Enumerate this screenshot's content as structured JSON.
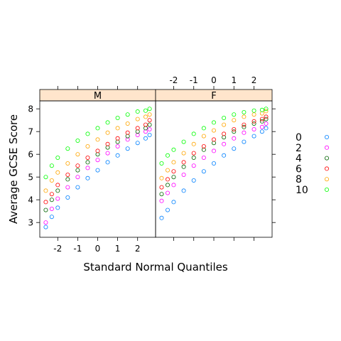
{
  "chart_data": {
    "type": "scatter",
    "title": "",
    "xlabel": "Standard Normal Quantiles",
    "ylabel": "Average GCSE Score",
    "xlim": [
      -2.9,
      2.9
    ],
    "ylim": [
      2.35,
      8.35
    ],
    "x_ticks": [
      -2,
      -1,
      0,
      1,
      2
    ],
    "x_tick_labels": [
      "-2",
      "-1",
      "0",
      "1",
      "2"
    ],
    "y_ticks": [
      3,
      4,
      5,
      6,
      7,
      8
    ],
    "y_tick_labels": [
      "3",
      "4",
      "5",
      "6",
      "7",
      "8"
    ],
    "grid": false,
    "legend_position": "right",
    "panels": [
      {
        "label": "M",
        "series": [
          {
            "name": "0",
            "color": "#0080ff",
            "points": [
              [
                -2.6,
                2.8
              ],
              [
                -2.3,
                3.25
              ],
              [
                -2.0,
                3.65
              ],
              [
                -1.5,
                4.1
              ],
              [
                -1.0,
                4.55
              ],
              [
                -0.5,
                4.95
              ],
              [
                0.0,
                5.3
              ],
              [
                0.5,
                5.65
              ],
              [
                1.0,
                5.95
              ],
              [
                1.5,
                6.25
              ],
              [
                2.0,
                6.5
              ],
              [
                2.4,
                6.7
              ],
              [
                2.6,
                6.85
              ]
            ]
          },
          {
            "name": "2",
            "color": "#ff00ff",
            "points": [
              [
                -2.6,
                3.0
              ],
              [
                -2.3,
                3.6
              ],
              [
                -2.0,
                4.05
              ],
              [
                -1.5,
                4.55
              ],
              [
                -1.0,
                5.0
              ],
              [
                -0.5,
                5.4
              ],
              [
                0.0,
                5.75
              ],
              [
                0.5,
                6.05
              ],
              [
                1.0,
                6.35
              ],
              [
                1.5,
                6.65
              ],
              [
                2.0,
                6.85
              ],
              [
                2.4,
                7.0
              ],
              [
                2.6,
                7.1
              ]
            ]
          },
          {
            "name": "4",
            "color": "#006400",
            "points": [
              [
                -2.6,
                3.55
              ],
              [
                -2.3,
                4.0
              ],
              [
                -2.0,
                4.4
              ],
              [
                -1.5,
                4.9
              ],
              [
                -1.0,
                5.3
              ],
              [
                -0.5,
                5.65
              ],
              [
                0.0,
                6.0
              ],
              [
                0.5,
                6.3
              ],
              [
                1.0,
                6.55
              ],
              [
                1.5,
                6.8
              ],
              [
                2.0,
                7.0
              ],
              [
                2.4,
                7.15
              ],
              [
                2.6,
                7.3
              ]
            ]
          },
          {
            "name": "6",
            "color": "#ff0000",
            "points": [
              [
                -2.6,
                3.9
              ],
              [
                -2.3,
                4.25
              ],
              [
                -2.0,
                4.65
              ],
              [
                -1.5,
                5.1
              ],
              [
                -1.0,
                5.5
              ],
              [
                -0.5,
                5.85
              ],
              [
                0.0,
                6.15
              ],
              [
                0.5,
                6.45
              ],
              [
                1.0,
                6.7
              ],
              [
                1.5,
                6.95
              ],
              [
                2.0,
                7.15
              ],
              [
                2.4,
                7.3
              ],
              [
                2.6,
                7.5
              ]
            ]
          },
          {
            "name": "8",
            "color": "#ffa500",
            "points": [
              [
                -2.6,
                4.4
              ],
              [
                -2.3,
                4.85
              ],
              [
                -2.0,
                5.2
              ],
              [
                -1.5,
                5.6
              ],
              [
                -1.0,
                6.0
              ],
              [
                -0.5,
                6.35
              ],
              [
                0.0,
                6.65
              ],
              [
                0.5,
                6.95
              ],
              [
                1.0,
                7.15
              ],
              [
                1.5,
                7.35
              ],
              [
                2.0,
                7.55
              ],
              [
                2.4,
                7.65
              ],
              [
                2.6,
                7.75
              ]
            ]
          },
          {
            "name": "10",
            "color": "#00ff00",
            "points": [
              [
                -2.6,
                5.0
              ],
              [
                -2.3,
                5.5
              ],
              [
                -2.0,
                5.85
              ],
              [
                -1.5,
                6.25
              ],
              [
                -1.0,
                6.6
              ],
              [
                -0.5,
                6.9
              ],
              [
                0.0,
                7.15
              ],
              [
                0.5,
                7.4
              ],
              [
                1.0,
                7.6
              ],
              [
                1.5,
                7.75
              ],
              [
                2.0,
                7.88
              ],
              [
                2.4,
                7.92
              ],
              [
                2.6,
                8.0
              ]
            ]
          }
        ]
      },
      {
        "label": "F",
        "series": [
          {
            "name": "0",
            "color": "#0080ff",
            "points": [
              [
                -2.6,
                3.2
              ],
              [
                -2.3,
                3.55
              ],
              [
                -2.0,
                3.9
              ],
              [
                -1.5,
                4.4
              ],
              [
                -1.0,
                4.85
              ],
              [
                -0.5,
                5.25
              ],
              [
                0.0,
                5.6
              ],
              [
                0.5,
                5.95
              ],
              [
                1.0,
                6.25
              ],
              [
                1.5,
                6.55
              ],
              [
                2.0,
                6.8
              ],
              [
                2.4,
                7.0
              ],
              [
                2.6,
                7.15
              ]
            ]
          },
          {
            "name": "2",
            "color": "#ff00ff",
            "points": [
              [
                -2.6,
                3.95
              ],
              [
                -2.3,
                4.3
              ],
              [
                -2.0,
                4.65
              ],
              [
                -1.5,
                5.1
              ],
              [
                -1.0,
                5.5
              ],
              [
                -0.5,
                5.85
              ],
              [
                0.0,
                6.15
              ],
              [
                0.5,
                6.45
              ],
              [
                1.0,
                6.7
              ],
              [
                1.5,
                6.95
              ],
              [
                2.0,
                7.1
              ],
              [
                2.4,
                7.2
              ],
              [
                2.6,
                7.35
              ]
            ]
          },
          {
            "name": "4",
            "color": "#006400",
            "points": [
              [
                -2.6,
                4.25
              ],
              [
                -2.3,
                4.65
              ],
              [
                -2.0,
                5.0
              ],
              [
                -1.5,
                5.45
              ],
              [
                -1.0,
                5.85
              ],
              [
                -0.5,
                6.2
              ],
              [
                0.0,
                6.5
              ],
              [
                0.5,
                6.75
              ],
              [
                1.0,
                7.0
              ],
              [
                1.5,
                7.2
              ],
              [
                2.0,
                7.35
              ],
              [
                2.4,
                7.45
              ],
              [
                2.6,
                7.55
              ]
            ]
          },
          {
            "name": "6",
            "color": "#ff0000",
            "points": [
              [
                -2.6,
                4.55
              ],
              [
                -2.3,
                4.9
              ],
              [
                -2.0,
                5.25
              ],
              [
                -1.5,
                5.65
              ],
              [
                -1.0,
                6.05
              ],
              [
                -0.5,
                6.35
              ],
              [
                0.0,
                6.65
              ],
              [
                0.5,
                6.9
              ],
              [
                1.0,
                7.1
              ],
              [
                1.5,
                7.3
              ],
              [
                2.0,
                7.45
              ],
              [
                2.4,
                7.55
              ],
              [
                2.6,
                7.65
              ]
            ]
          },
          {
            "name": "8",
            "color": "#ffa500",
            "points": [
              [
                -2.6,
                4.95
              ],
              [
                -2.3,
                5.3
              ],
              [
                -2.0,
                5.65
              ],
              [
                -1.5,
                6.05
              ],
              [
                -1.0,
                6.45
              ],
              [
                -0.5,
                6.8
              ],
              [
                0.0,
                7.05
              ],
              [
                0.5,
                7.3
              ],
              [
                1.0,
                7.5
              ],
              [
                1.5,
                7.65
              ],
              [
                2.0,
                7.75
              ],
              [
                2.4,
                7.8
              ],
              [
                2.6,
                7.9
              ]
            ]
          },
          {
            "name": "10",
            "color": "#00ff00",
            "points": [
              [
                -2.6,
                5.6
              ],
              [
                -2.3,
                5.95
              ],
              [
                -2.0,
                6.2
              ],
              [
                -1.5,
                6.55
              ],
              [
                -1.0,
                6.9
              ],
              [
                -0.5,
                7.15
              ],
              [
                0.0,
                7.4
              ],
              [
                0.5,
                7.6
              ],
              [
                1.0,
                7.75
              ],
              [
                1.5,
                7.85
              ],
              [
                2.0,
                7.92
              ],
              [
                2.4,
                7.95
              ],
              [
                2.6,
                8.0
              ]
            ]
          }
        ]
      }
    ],
    "legend": [
      {
        "label": "0",
        "color": "#0080ff"
      },
      {
        "label": "2",
        "color": "#ff00ff"
      },
      {
        "label": "4",
        "color": "#006400"
      },
      {
        "label": "6",
        "color": "#ff0000"
      },
      {
        "label": "8",
        "color": "#ffa500"
      },
      {
        "label": "10",
        "color": "#00ff00"
      }
    ],
    "strip_color": "#ffe5cc"
  }
}
